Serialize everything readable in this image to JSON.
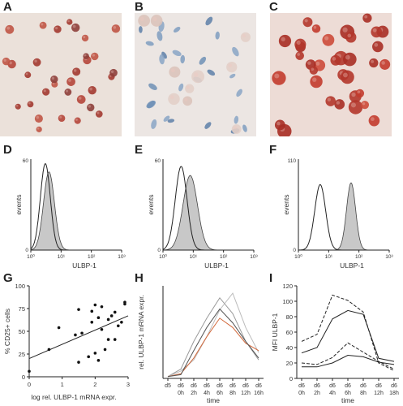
{
  "panel_labels": [
    "A",
    "B",
    "C",
    "D",
    "E",
    "F",
    "G",
    "H",
    "I"
  ],
  "micrographs": [
    {
      "panel": "A",
      "description_color": "#b5463a",
      "stain": "red"
    },
    {
      "panel": "B",
      "description_color": "#6f8fb5",
      "stain": "blue"
    },
    {
      "panel": "C",
      "description_color": "#c23b2e",
      "stain": "red"
    }
  ],
  "colors": {
    "red_stain": "#b5463a",
    "blue_stain": "#6f8fb5",
    "fill_gray": "#c8c8c8",
    "line_orange": "#d2693c"
  },
  "histograms": [
    {
      "panel": "D",
      "ymax_label": "60",
      "ylabel": "events",
      "xlabel": "ULBP-1",
      "xticks": [
        "10⁰",
        "10¹",
        "10²",
        "10³"
      ]
    },
    {
      "panel": "E",
      "ymax_label": "60",
      "ylabel": "events",
      "xlabel": "ULBP-1",
      "xticks": [
        "10⁰",
        "10¹",
        "10²",
        "10³"
      ]
    },
    {
      "panel": "F",
      "ymax_label": "110",
      "ylabel": "events",
      "xlabel": "ULBP-1",
      "xticks": [
        "10⁰",
        "10¹",
        "10²",
        "10³"
      ]
    }
  ],
  "chart_data": [
    {
      "panel": "G",
      "type": "scatter",
      "xlabel": "log rel. ULBP-1 mRNA expr.",
      "ylabel": "% CD25+ cells",
      "xlim": [
        0,
        3
      ],
      "ylim": [
        0,
        100
      ],
      "xticks": [
        "0",
        "1",
        "2",
        "3"
      ],
      "yticks": [
        "0",
        "25",
        "50",
        "75",
        "100"
      ],
      "x": [
        0.0,
        0.6,
        0.9,
        1.4,
        1.5,
        1.5,
        1.6,
        1.8,
        1.9,
        1.9,
        2.0,
        2.0,
        2.1,
        2.1,
        2.2,
        2.2,
        2.3,
        2.4,
        2.4,
        2.5,
        2.6,
        2.6,
        2.7,
        2.8,
        2.9,
        2.9
      ],
      "y": [
        6,
        30,
        54,
        46,
        74,
        16,
        48,
        22,
        60,
        72,
        26,
        79,
        18,
        65,
        52,
        77,
        30,
        63,
        41,
        67,
        71,
        41,
        56,
        60,
        80,
        82
      ],
      "fit_line": {
        "x": [
          0.0,
          3.0
        ],
        "y": [
          20,
          67
        ]
      }
    },
    {
      "panel": "H",
      "type": "line",
      "ylabel": "rel. ULBP-1 mRNA expr.",
      "xlabel": "time",
      "categories": [
        [
          "d5",
          ""
        ],
        [
          "d6",
          "0h"
        ],
        [
          "d6",
          "2h"
        ],
        [
          "d6",
          "4h"
        ],
        [
          "d6",
          "6h"
        ],
        [
          "d6",
          "8h"
        ],
        [
          "d6",
          "12h"
        ],
        [
          "d6",
          "16h"
        ]
      ],
      "ylim": [
        0,
        1
      ],
      "series": [
        {
          "color": "#9a9a9a",
          "values": [
            0.02,
            0.1,
            0.4,
            0.65,
            0.87,
            0.7,
            0.4,
            0.2
          ]
        },
        {
          "color": "#bbbbbb",
          "values": [
            0.02,
            0.08,
            0.2,
            0.45,
            0.74,
            0.92,
            0.55,
            0.28
          ]
        },
        {
          "color": "#d2693c",
          "values": [
            0.02,
            0.05,
            0.22,
            0.45,
            0.65,
            0.55,
            0.38,
            0.3
          ]
        },
        {
          "color": "#555555",
          "values": [
            0.02,
            0.04,
            0.3,
            0.55,
            0.75,
            0.6,
            0.4,
            0.22
          ]
        }
      ]
    },
    {
      "panel": "I",
      "type": "line",
      "ylabel": "MFI ULBP-1",
      "xlabel": "time",
      "categories": [
        [
          "d6",
          "0h"
        ],
        [
          "d6",
          "2h"
        ],
        [
          "d6",
          "4h"
        ],
        [
          "d6",
          "6h"
        ],
        [
          "d6",
          "8h"
        ],
        [
          "d6",
          "12h"
        ],
        [
          "d6",
          "18h"
        ]
      ],
      "ylim": [
        0,
        120
      ],
      "yticks": [
        "0",
        "20",
        "40",
        "60",
        "80",
        "100",
        "120"
      ],
      "series": [
        {
          "style": "dashed",
          "values": [
            48,
            57,
            108,
            101,
            86,
            20,
            10
          ]
        },
        {
          "style": "solid",
          "values": [
            33,
            40,
            77,
            88,
            83,
            26,
            22
          ]
        },
        {
          "style": "dashed",
          "values": [
            20,
            18,
            27,
            46,
            34,
            22,
            12
          ]
        },
        {
          "style": "solid",
          "values": [
            15,
            15,
            20,
            30,
            28,
            21,
            18
          ]
        }
      ]
    }
  ]
}
